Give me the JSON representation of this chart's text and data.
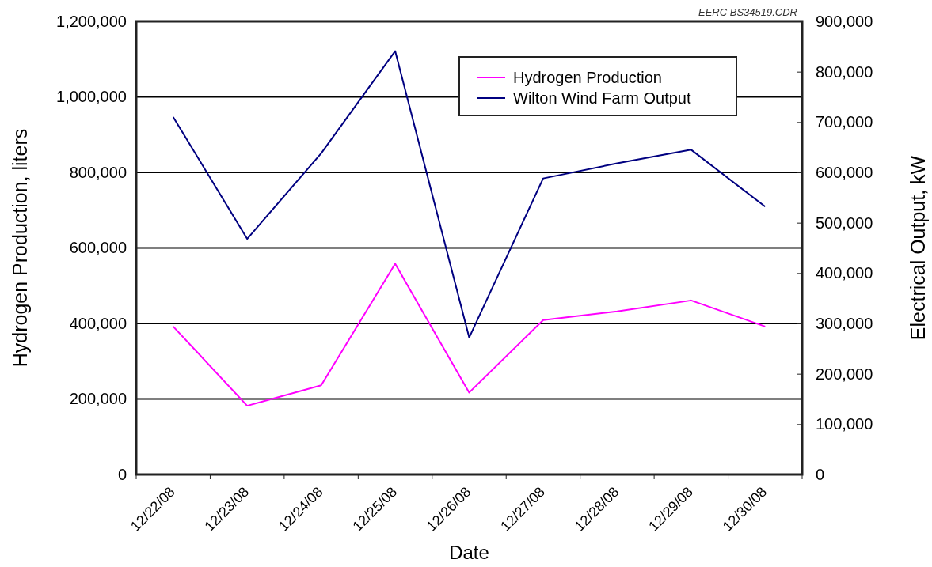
{
  "chart_data": {
    "type": "line",
    "xlabel": "Date",
    "ylabel": "Hydrogen Production, liters",
    "y2label": "Electrical Output, kW",
    "annotations": [
      "EERC BS34519.CDR"
    ],
    "categories": [
      "12/22/08",
      "12/23/08",
      "12/24/08",
      "12/25/08",
      "12/26/08",
      "12/27/08",
      "12/28/08",
      "12/29/08",
      "12/30/08"
    ],
    "series": [
      {
        "name": "Hydrogen Production",
        "color": "#ff00ff",
        "values": [
          392000,
          182000,
          236000,
          558000,
          217000,
          409000,
          432000,
          461000,
          392000
        ]
      },
      {
        "name": "Wilton Wind Farm Output",
        "color": "#000080",
        "axis": "y2",
        "values": [
          710000,
          468000,
          638000,
          841000,
          272000,
          588000,
          618000,
          645000,
          532000
        ]
      }
    ],
    "ylim": [
      0,
      1200000
    ],
    "yticks": [
      {
        "value": 0,
        "label": "0"
      },
      {
        "value": 200000,
        "label": "200,000"
      },
      {
        "value": 400000,
        "label": "400,000"
      },
      {
        "value": 600000,
        "label": "600,000"
      },
      {
        "value": 800000,
        "label": "800,000"
      },
      {
        "value": 1000000,
        "label": "1,000,000"
      },
      {
        "value": 1200000,
        "label": "1,200,000"
      }
    ],
    "y2lim": [
      0,
      900000
    ],
    "y2ticks": [
      {
        "value": 0,
        "label": "0"
      },
      {
        "value": 100000,
        "label": "100,000"
      },
      {
        "value": 200000,
        "label": "200,000"
      },
      {
        "value": 300000,
        "label": "300,000"
      },
      {
        "value": 400000,
        "label": "400,000"
      },
      {
        "value": 500000,
        "label": "500,000"
      },
      {
        "value": 600000,
        "label": "600,000"
      },
      {
        "value": 700000,
        "label": "700,000"
      },
      {
        "value": 800000,
        "label": "800,000"
      },
      {
        "value": 900000,
        "label": "900,000"
      }
    ],
    "grid": "y",
    "legend": "top right",
    "marker": "none",
    "line_style": "solid"
  }
}
